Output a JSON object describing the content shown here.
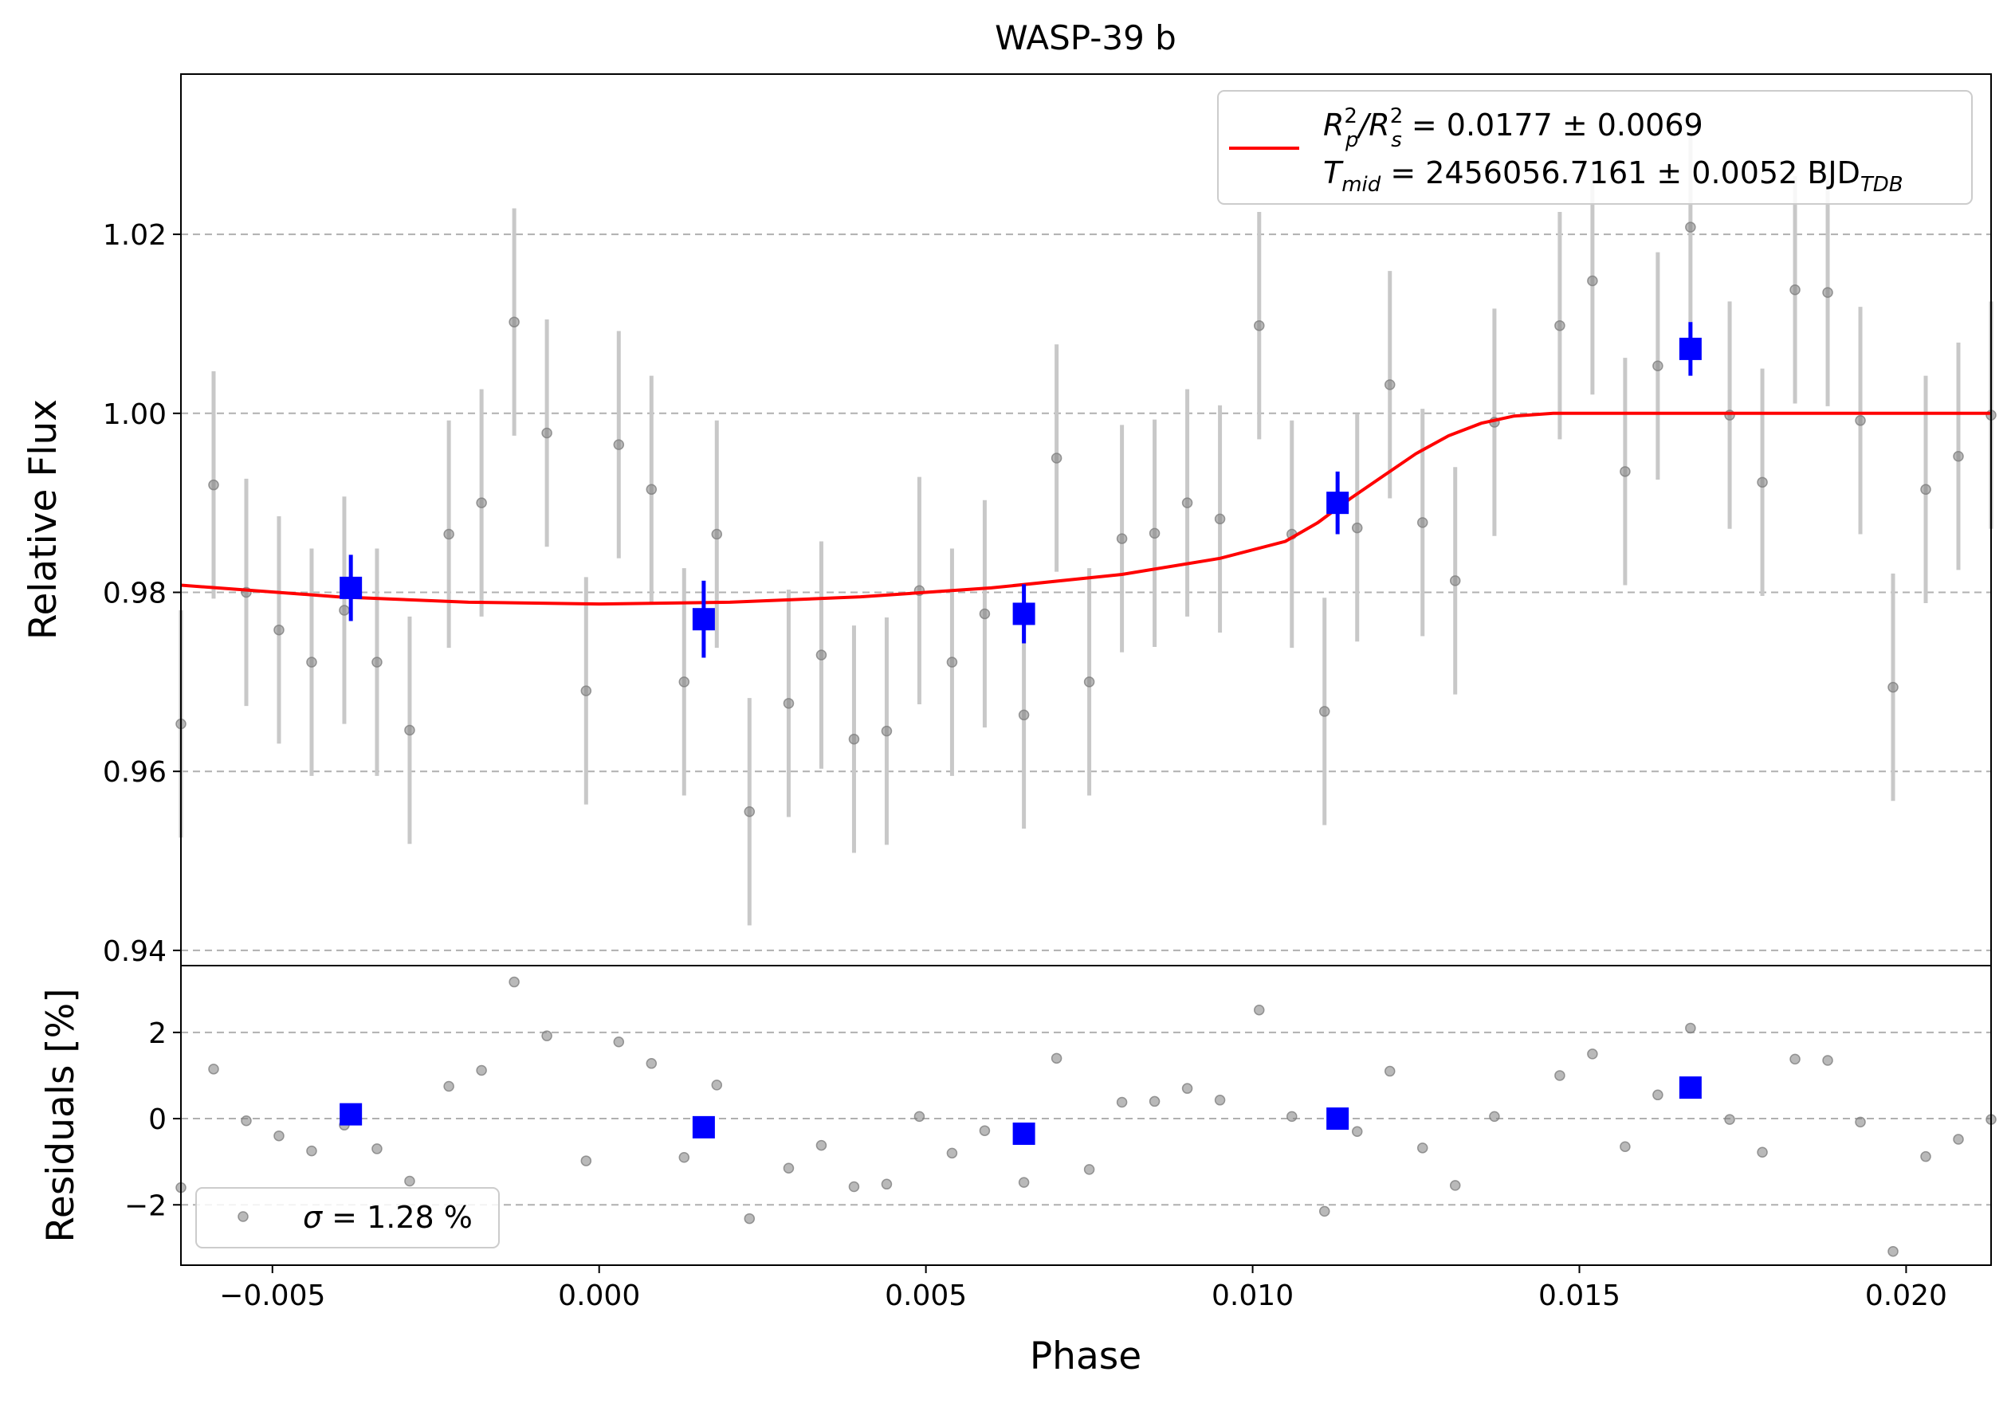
{
  "chart_data": {
    "type": "scatter",
    "title": "WASP-39 b",
    "xlabel": "Phase",
    "ylabel_top": "Relative Flux",
    "ylabel_bottom": "Residuals [%]",
    "xlim": [
      -0.0064,
      0.0213
    ],
    "ylim_top": [
      0.9383,
      1.0379
    ],
    "ylim_bottom": [
      -3.4,
      3.55
    ],
    "x_ticks": [
      -0.005,
      0.0,
      0.005,
      0.01,
      0.015,
      0.02
    ],
    "x_tick_labels": [
      "−0.005",
      "0.000",
      "0.005",
      "0.010",
      "0.015",
      "0.020"
    ],
    "y_ticks_top": [
      0.94,
      0.96,
      0.98,
      1.0,
      1.02
    ],
    "y_tick_labels_top": [
      "0.94",
      "0.96",
      "0.98",
      "1.00",
      "1.02"
    ],
    "y_ticks_bottom": [
      -2,
      0,
      2
    ],
    "y_tick_labels_bottom": [
      "−2",
      "0",
      "2"
    ],
    "grid": "y-dashed",
    "colors": {
      "raw": "#808080",
      "errorbar": "#c8c8c8",
      "binned": "#0000ff",
      "model": "#ff0000",
      "grid": "#b0b0b0"
    },
    "legend_top": {
      "placement": "top-right",
      "line1": {
        "main": "R",
        "sup1": "2",
        "sub1": "p",
        "mid": "/R",
        "sup2": "2",
        "sub2": "s",
        "tail": " = 0.0177 ± 0.0069"
      },
      "line2": {
        "main": "T",
        "sub1": "mid",
        "tail": " = 2456056.7161 ± 0.0052 BJD",
        "sub2": "TDB"
      }
    },
    "legend_bottom": {
      "placement": "lower-left",
      "sigma_symbol": "σ",
      "label": " = 1.28 %"
    },
    "raw_points": [
      {
        "x": -0.0064,
        "y": 0.9653,
        "e": 0.0127,
        "r": -1.6
      },
      {
        "x": -0.0059,
        "y": 0.992,
        "e": 0.0127,
        "r": 1.15
      },
      {
        "x": -0.0054,
        "y": 0.98,
        "e": 0.0127,
        "r": -0.05
      },
      {
        "x": -0.0049,
        "y": 0.9758,
        "e": 0.0127,
        "r": -0.4
      },
      {
        "x": -0.0044,
        "y": 0.9722,
        "e": 0.0127,
        "r": -0.75
      },
      {
        "x": -0.0039,
        "y": 0.978,
        "e": 0.0127,
        "r": -0.15
      },
      {
        "x": -0.0034,
        "y": 0.9722,
        "e": 0.0127,
        "r": -0.7
      },
      {
        "x": -0.0029,
        "y": 0.9646,
        "e": 0.0127,
        "r": -1.45
      },
      {
        "x": -0.0023,
        "y": 0.9865,
        "e": 0.0127,
        "r": 0.75
      },
      {
        "x": -0.0018,
        "y": 0.99,
        "e": 0.0127,
        "r": 1.12
      },
      {
        "x": -0.0013,
        "y": 1.0102,
        "e": 0.0127,
        "r": 3.17
      },
      {
        "x": -0.0008,
        "y": 0.9978,
        "e": 0.0127,
        "r": 1.92
      },
      {
        "x": -0.0002,
        "y": 0.969,
        "e": 0.0127,
        "r": -0.98
      },
      {
        "x": 0.0003,
        "y": 0.9965,
        "e": 0.0127,
        "r": 1.78
      },
      {
        "x": 0.0008,
        "y": 0.9915,
        "e": 0.0127,
        "r": 1.28
      },
      {
        "x": 0.0013,
        "y": 0.97,
        "e": 0.0127,
        "r": -0.9
      },
      {
        "x": 0.0018,
        "y": 0.9865,
        "e": 0.0127,
        "r": 0.78
      },
      {
        "x": 0.0023,
        "y": 0.9555,
        "e": 0.0127,
        "r": -2.32
      },
      {
        "x": 0.0029,
        "y": 0.9676,
        "e": 0.0127,
        "r": -1.15
      },
      {
        "x": 0.0034,
        "y": 0.973,
        "e": 0.0127,
        "r": -0.62
      },
      {
        "x": 0.0039,
        "y": 0.9636,
        "e": 0.0127,
        "r": -1.58
      },
      {
        "x": 0.0044,
        "y": 0.9645,
        "e": 0.0127,
        "r": -1.52
      },
      {
        "x": 0.0049,
        "y": 0.9802,
        "e": 0.0127,
        "r": 0.05
      },
      {
        "x": 0.0054,
        "y": 0.9722,
        "e": 0.0127,
        "r": -0.8
      },
      {
        "x": 0.0059,
        "y": 0.9776,
        "e": 0.0127,
        "r": -0.28
      },
      {
        "x": 0.0065,
        "y": 0.9663,
        "e": 0.0127,
        "r": -1.48
      },
      {
        "x": 0.007,
        "y": 0.995,
        "e": 0.0127,
        "r": 1.4
      },
      {
        "x": 0.0075,
        "y": 0.97,
        "e": 0.0127,
        "r": -1.18
      },
      {
        "x": 0.008,
        "y": 0.986,
        "e": 0.0127,
        "r": 0.38
      },
      {
        "x": 0.0085,
        "y": 0.9866,
        "e": 0.0127,
        "r": 0.4
      },
      {
        "x": 0.009,
        "y": 0.99,
        "e": 0.0127,
        "r": 0.7
      },
      {
        "x": 0.0095,
        "y": 0.9882,
        "e": 0.0127,
        "r": 0.43
      },
      {
        "x": 0.0101,
        "y": 1.0098,
        "e": 0.0127,
        "r": 2.52
      },
      {
        "x": 0.0106,
        "y": 0.9865,
        "e": 0.0127,
        "r": 0.05
      },
      {
        "x": 0.0111,
        "y": 0.9667,
        "e": 0.0127,
        "r": -2.15
      },
      {
        "x": 0.0116,
        "y": 0.9872,
        "e": 0.0127,
        "r": -0.3
      },
      {
        "x": 0.0121,
        "y": 1.0032,
        "e": 0.0127,
        "r": 1.1
      },
      {
        "x": 0.0126,
        "y": 0.9878,
        "e": 0.0127,
        "r": -0.68
      },
      {
        "x": 0.0131,
        "y": 0.9813,
        "e": 0.0127,
        "r": -1.55
      },
      {
        "x": 0.0137,
        "y": 0.999,
        "e": 0.0127,
        "r": 0.05
      },
      {
        "x": 0.0147,
        "y": 1.0098,
        "e": 0.0127,
        "r": 1.0
      },
      {
        "x": 0.0152,
        "y": 1.0148,
        "e": 0.0127,
        "r": 1.5
      },
      {
        "x": 0.0157,
        "y": 0.9935,
        "e": 0.0127,
        "r": -0.65
      },
      {
        "x": 0.0162,
        "y": 1.0053,
        "e": 0.0127,
        "r": 0.55
      },
      {
        "x": 0.0167,
        "y": 1.0208,
        "e": 0.0127,
        "r": 2.1
      },
      {
        "x": 0.0173,
        "y": 0.9998,
        "e": 0.0127,
        "r": -0.02
      },
      {
        "x": 0.0178,
        "y": 0.9923,
        "e": 0.0127,
        "r": -0.78
      },
      {
        "x": 0.0183,
        "y": 1.0138,
        "e": 0.0127,
        "r": 1.38
      },
      {
        "x": 0.0188,
        "y": 1.0135,
        "e": 0.0127,
        "r": 1.35
      },
      {
        "x": 0.0193,
        "y": 0.9992,
        "e": 0.0127,
        "r": -0.08
      },
      {
        "x": 0.0198,
        "y": 0.9694,
        "e": 0.0127,
        "r": -3.08
      },
      {
        "x": 0.0203,
        "y": 0.9915,
        "e": 0.0127,
        "r": -0.88
      },
      {
        "x": 0.0208,
        "y": 0.9952,
        "e": 0.0127,
        "r": -0.48
      },
      {
        "x": 0.0213,
        "y": 0.9998,
        "e": 0.0127,
        "r": -0.02
      }
    ],
    "binned_points": [
      {
        "x": -0.0038,
        "y": 0.9805,
        "e": 0.0037,
        "r": 0.1
      },
      {
        "x": 0.0016,
        "y": 0.977,
        "e": 0.0043,
        "r": -0.2
      },
      {
        "x": 0.0065,
        "y": 0.9776,
        "e": 0.0033,
        "r": -0.35
      },
      {
        "x": 0.0113,
        "y": 0.99,
        "e": 0.0035,
        "r": 0.0
      },
      {
        "x": 0.0167,
        "y": 1.0072,
        "e": 0.003,
        "r": 0.72
      }
    ],
    "model_curve": [
      {
        "x": -0.0064,
        "y": 0.9808
      },
      {
        "x": -0.004,
        "y": 0.9795
      },
      {
        "x": -0.002,
        "y": 0.9789
      },
      {
        "x": 0.0,
        "y": 0.9787
      },
      {
        "x": 0.002,
        "y": 0.9789
      },
      {
        "x": 0.004,
        "y": 0.9795
      },
      {
        "x": 0.006,
        "y": 0.9805
      },
      {
        "x": 0.008,
        "y": 0.982
      },
      {
        "x": 0.0095,
        "y": 0.9838
      },
      {
        "x": 0.0105,
        "y": 0.9857
      },
      {
        "x": 0.011,
        "y": 0.9878
      },
      {
        "x": 0.0115,
        "y": 0.9905
      },
      {
        "x": 0.012,
        "y": 0.993
      },
      {
        "x": 0.0125,
        "y": 0.9955
      },
      {
        "x": 0.013,
        "y": 0.9975
      },
      {
        "x": 0.0135,
        "y": 0.9989
      },
      {
        "x": 0.014,
        "y": 0.9997
      },
      {
        "x": 0.0146,
        "y": 1.0
      },
      {
        "x": 0.0213,
        "y": 1.0
      }
    ]
  }
}
